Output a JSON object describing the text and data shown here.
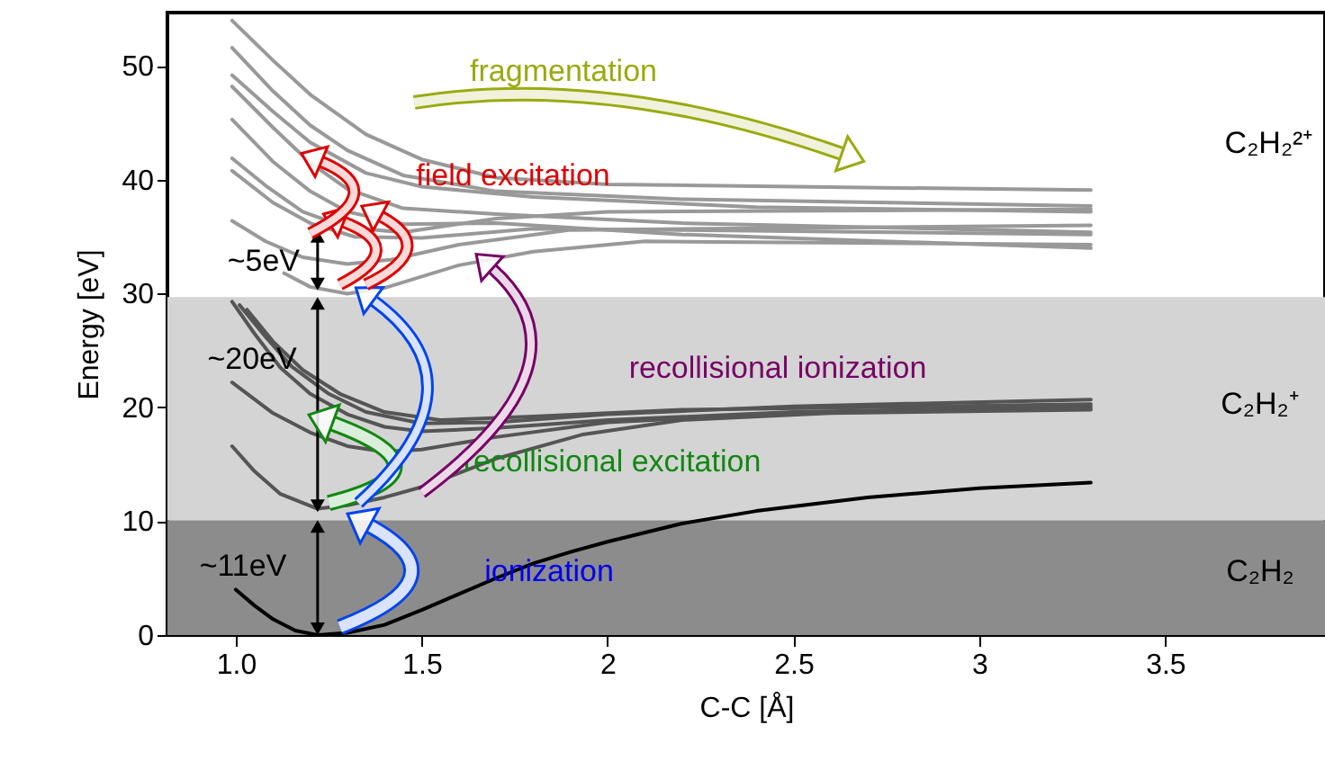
{
  "chart_data": {
    "type": "line",
    "xlabel": "C-C [Å]",
    "ylabel": "Energy [eV]",
    "xlim": [
      0.816,
      3.93
    ],
    "ylim": [
      0,
      54.7
    ],
    "xticks": [
      {
        "value": 1,
        "label": "1.0"
      },
      1.5,
      2,
      2.5,
      3,
      3.5
    ],
    "yticks": [
      0,
      10,
      20,
      30,
      40,
      50
    ],
    "line_style": "solid",
    "marker": "none",
    "bands": [
      {
        "axis": "y",
        "from": 0,
        "to": 10.1,
        "color": "#8c8c8c"
      },
      {
        "axis": "y",
        "from": 10.1,
        "to": 29.7,
        "color": "#d4d4d4"
      }
    ],
    "series": [
      {
        "color": "#999999",
        "x": [
          0.99,
          1.1,
          1.2,
          1.35,
          1.5,
          1.7,
          2.0,
          2.5,
          3.3
        ],
        "values": [
          54,
          50.5,
          47.5,
          44,
          41.8,
          40.2,
          39.6,
          39.4,
          39.1
        ]
      },
      {
        "color": "#999999",
        "x": [
          0.99,
          1.1,
          1.2,
          1.3,
          1.45,
          1.7,
          2.2,
          3.3
        ],
        "values": [
          51.6,
          47.8,
          44.8,
          42.6,
          40.4,
          39,
          38.3,
          37.7
        ]
      },
      {
        "color": "#999999",
        "x": [
          0.99,
          1.1,
          1.2,
          1.35,
          1.5,
          1.8,
          2.4,
          3.3
        ],
        "values": [
          49.2,
          46,
          43.3,
          40.6,
          39.4,
          38.5,
          37.6,
          37.2
        ]
      },
      {
        "color": "#999999",
        "x": [
          0.99,
          1.1,
          1.2,
          1.3,
          1.45,
          1.7,
          2.2,
          3.3
        ],
        "values": [
          48.2,
          44.6,
          41.5,
          39.2,
          37.5,
          37,
          36.2,
          35.4
        ]
      },
      {
        "color": "#999999",
        "x": [
          0.99,
          1.1,
          1.2,
          1.3,
          1.45,
          1.7,
          2.2,
          3.3
        ],
        "values": [
          45.3,
          41.6,
          39,
          37.2,
          36.1,
          36.2,
          35.2,
          34
        ]
      },
      {
        "color": "#999999",
        "x": [
          0.99,
          1.08,
          1.18,
          1.3,
          1.45,
          1.7,
          2.0,
          3.3
        ],
        "values": [
          41.9,
          39.5,
          37.2,
          35.8,
          35.4,
          36.6,
          37.2,
          37.4
        ]
      },
      {
        "color": "#999999",
        "x": [
          0.99,
          1.1,
          1.2,
          1.32,
          1.5,
          1.8,
          2.2,
          3.3
        ],
        "values": [
          40.8,
          38,
          36.2,
          35,
          34.9,
          35.7,
          35.6,
          35.2
        ]
      },
      {
        "color": "#999999",
        "x": [
          0.99,
          1.08,
          1.18,
          1.3,
          1.42,
          1.6,
          1.9,
          3.3
        ],
        "values": [
          36.4,
          34.6,
          33.2,
          32.6,
          33,
          34.3,
          35.6,
          36
        ]
      },
      {
        "color": "#999999",
        "x": [
          1.13,
          1.2,
          1.3,
          1.4,
          1.6,
          1.8,
          2.1,
          3.3
        ],
        "values": [
          31.8,
          30.6,
          30,
          30.5,
          32.5,
          33.7,
          34.6,
          34.3
        ]
      },
      {
        "color": "#555555",
        "x": [
          0.99,
          1.05,
          1.12,
          1.2,
          1.3,
          1.4,
          1.5,
          1.7,
          2.0,
          2.5,
          3.3
        ],
        "values": [
          29.3,
          26.5,
          23.5,
          21.2,
          19.4,
          18.3,
          17.9,
          18.2,
          18.9,
          19.6,
          20.1
        ]
      },
      {
        "color": "#555555",
        "x": [
          1.01,
          1.08,
          1.15,
          1.25,
          1.35,
          1.5,
          1.7,
          2.0,
          2.5,
          3.3
        ],
        "values": [
          29,
          26.2,
          23.6,
          21.2,
          19.6,
          18.6,
          18.7,
          19.4,
          20.1,
          20.7
        ]
      },
      {
        "color": "#555555",
        "x": [
          1.03,
          1.1,
          1.18,
          1.28,
          1.4,
          1.55,
          1.8,
          2.2,
          3.3
        ],
        "values": [
          28.6,
          25.8,
          23.3,
          21.2,
          19.6,
          18.9,
          19.2,
          19.8,
          20.3
        ]
      },
      {
        "color": "#555555",
        "x": [
          0.99,
          1.1,
          1.2,
          1.3,
          1.4,
          1.5,
          1.7,
          2.0,
          2.5,
          3.3
        ],
        "values": [
          22.2,
          19.5,
          17.8,
          16.6,
          16.1,
          16.3,
          17.4,
          18.7,
          19.5,
          19.9
        ]
      },
      {
        "color": "#555555",
        "x": [
          0.99,
          1.05,
          1.12,
          1.22,
          1.3,
          1.4,
          1.51,
          1.7,
          1.93,
          2.2,
          2.6,
          3.3
        ],
        "values": [
          16.6,
          14.4,
          12.4,
          11.1,
          11.4,
          12.1,
          13.1,
          15.5,
          17.6,
          18.9,
          19.5,
          19.8
        ]
      },
      {
        "color": "#000000",
        "x": [
          1.0,
          1.05,
          1.1,
          1.16,
          1.22,
          1.3,
          1.4,
          1.5,
          1.6,
          1.7,
          1.8,
          1.9,
          2.0,
          2.2,
          2.4,
          2.7,
          3.0,
          3.3
        ],
        "values": [
          4.0,
          2.6,
          1.4,
          0.4,
          0,
          0.2,
          0.9,
          2.2,
          3.6,
          5.0,
          6.3,
          7.3,
          8.2,
          9.8,
          10.9,
          12.1,
          12.9,
          13.4
        ]
      }
    ],
    "annotations": [
      "fragmentation",
      "field excitation",
      "recollisional ionization",
      "recollisional excitation",
      "ionization",
      {
        "text": "~5eV",
        "x": 1.22,
        "y": 32.8
      },
      "~20eV",
      "~11eV",
      "C₂H₂²⁺",
      "C₂H₂⁺",
      "C₂H₂"
    ]
  }
}
